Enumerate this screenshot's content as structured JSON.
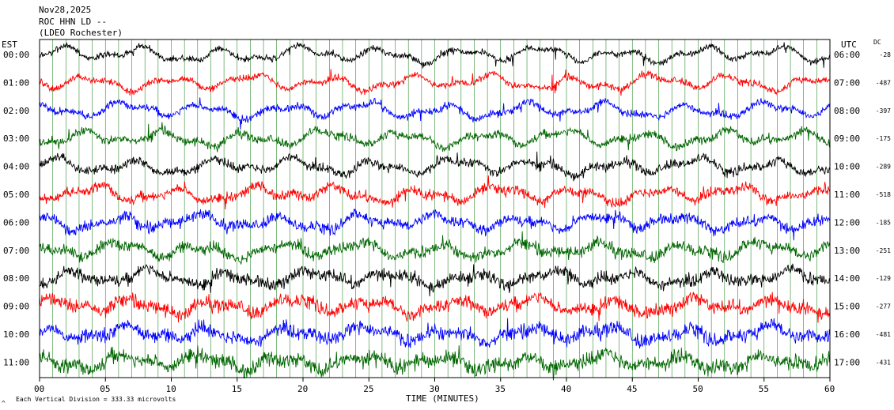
{
  "header": {
    "date": "Nov28,2025",
    "station": "ROC HHN LD --",
    "network": "(LDEO Rochester)"
  },
  "left_axis_title": "EST",
  "right_axis_title": "UTC",
  "dc_title": "DC",
  "footer": {
    "scale_note": "Each Vertical Division =  333.33 microvolts",
    "corner_mark": "^"
  },
  "chart_data": {
    "type": "line",
    "title": "",
    "xlabel": "TIME (MINUTES)",
    "ylabel": "",
    "xlim": [
      0,
      60
    ],
    "x_ticks": [
      0,
      5,
      10,
      15,
      20,
      25,
      30,
      35,
      40,
      45,
      50,
      55,
      60
    ],
    "x_tick_labels": [
      "00",
      "05",
      "10",
      "15",
      "20",
      "25",
      "30",
      "35",
      "40",
      "45",
      "50",
      "55",
      "60"
    ],
    "grid": "vertical minute lines",
    "series": [
      {
        "est": "00:00",
        "utc": "06:00",
        "dc": "-28",
        "color": "#000000"
      },
      {
        "est": "01:00",
        "utc": "07:00",
        "dc": "-487",
        "color": "#ff0000"
      },
      {
        "est": "02:00",
        "utc": "08:00",
        "dc": "-397",
        "color": "#0000ff"
      },
      {
        "est": "03:00",
        "utc": "09:00",
        "dc": "-175",
        "color": "#006600"
      },
      {
        "est": "04:00",
        "utc": "10:00",
        "dc": "-289",
        "color": "#000000"
      },
      {
        "est": "05:00",
        "utc": "11:00",
        "dc": "-518",
        "color": "#ff0000"
      },
      {
        "est": "06:00",
        "utc": "12:00",
        "dc": "-185",
        "color": "#0000ff"
      },
      {
        "est": "07:00",
        "utc": "13:00",
        "dc": "-251",
        "color": "#006600"
      },
      {
        "est": "08:00",
        "utc": "14:00",
        "dc": "-129",
        "color": "#000000"
      },
      {
        "est": "09:00",
        "utc": "15:00",
        "dc": "-277",
        "color": "#ff0000"
      },
      {
        "est": "10:00",
        "utc": "16:00",
        "dc": "-481",
        "color": "#0000ff"
      },
      {
        "est": "11:00",
        "utc": "17:00",
        "dc": "-431",
        "color": "#006600"
      }
    ]
  }
}
